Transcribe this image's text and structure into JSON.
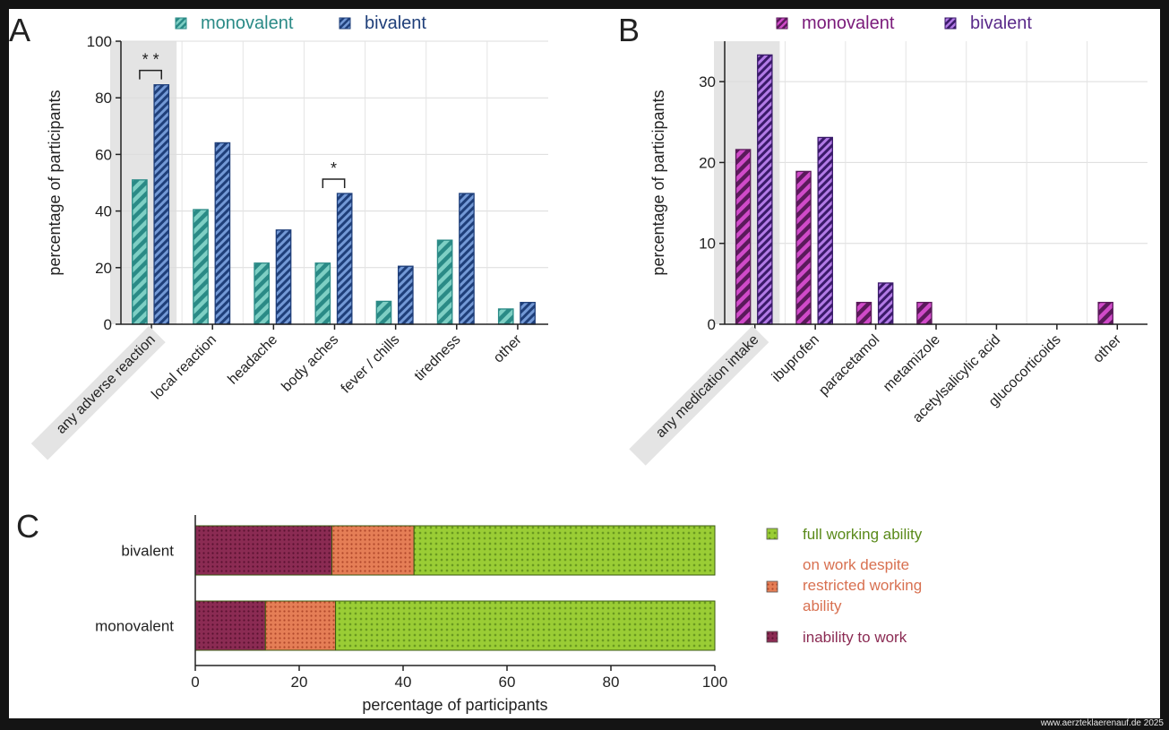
{
  "panel_letters": {
    "a": "A",
    "b": "B",
    "c": "C"
  },
  "watermark": "www.aerzteklaerenauf.de 2025",
  "chart_data": [
    {
      "panel": "A",
      "type": "bar",
      "title": "",
      "xlabel": "",
      "ylabel": "percentage of participants",
      "ylim": [
        0,
        100
      ],
      "yticks": [
        0,
        20,
        40,
        60,
        80,
        100
      ],
      "grid": true,
      "legend_position": "top",
      "highlighted_category": "any adverse reaction",
      "categories": [
        "any adverse reaction",
        "local reaction",
        "headache",
        "body aches",
        "fever / chills",
        "tiredness",
        "other"
      ],
      "series": [
        {
          "name": "monovalent",
          "color": "#7ecfc4",
          "stripe": "#2a8a86",
          "values": [
            51,
            40.5,
            21.6,
            21.6,
            8.1,
            29.7,
            5.4
          ]
        },
        {
          "name": "bivalent",
          "color": "#7399d6",
          "stripe": "#1f3f7a",
          "values": [
            84.6,
            64.1,
            33.3,
            46.2,
            20.5,
            46.2,
            7.7
          ]
        }
      ],
      "significance": [
        {
          "category": "any adverse reaction",
          "label": "* *"
        },
        {
          "category": "body aches",
          "label": "*"
        }
      ],
      "legend_text_colors": {
        "monovalent": "#2a8a86",
        "bivalent": "#1f3f7a"
      }
    },
    {
      "panel": "B",
      "type": "bar",
      "title": "",
      "xlabel": "",
      "ylabel": "percentage of participants",
      "ylim": [
        0,
        35
      ],
      "yticks": [
        0,
        10,
        20,
        30
      ],
      "grid": true,
      "legend_position": "top",
      "highlighted_category": "any medication intake",
      "categories": [
        "any medication intake",
        "ibuprofen",
        "paracetamol",
        "metamizole",
        "acetylsalicylic acid",
        "glucocorticoids",
        "other"
      ],
      "series": [
        {
          "name": "monovalent",
          "color": "#d04ac9",
          "stripe": "#5a1a5a",
          "values": [
            21.6,
            18.9,
            2.7,
            2.7,
            0,
            0,
            2.7
          ]
        },
        {
          "name": "bivalent",
          "color": "#b27ae6",
          "stripe": "#3a1a6a",
          "values": [
            33.3,
            23.1,
            5.1,
            0,
            0,
            0,
            0
          ]
        }
      ],
      "legend_text_colors": {
        "monovalent": "#7a1a7a",
        "bivalent": "#5a2a8a"
      }
    },
    {
      "panel": "C",
      "type": "bar",
      "orientation": "horizontal",
      "stacked": true,
      "title": "",
      "xlabel": "percentage of participants",
      "ylabel": "",
      "xlim": [
        0,
        100
      ],
      "xticks": [
        0,
        20,
        40,
        60,
        80,
        100
      ],
      "legend_position": "right",
      "categories": [
        "bivalent",
        "monovalent"
      ],
      "series": [
        {
          "name": "inability to work",
          "color": "#8b2b53",
          "text_color": "#8b2b53",
          "values": [
            26.3,
            13.5
          ]
        },
        {
          "name": "on work despite restricted working ability",
          "label_lines": [
            "on work despite",
            "restricted working",
            "ability"
          ],
          "color": "#e57e56",
          "text_color": "#d87050",
          "values": [
            15.8,
            13.5
          ]
        },
        {
          "name": "full working ability",
          "color": "#9acd35",
          "text_color": "#5a8a1a",
          "values": [
            57.9,
            73.0
          ]
        }
      ]
    }
  ]
}
